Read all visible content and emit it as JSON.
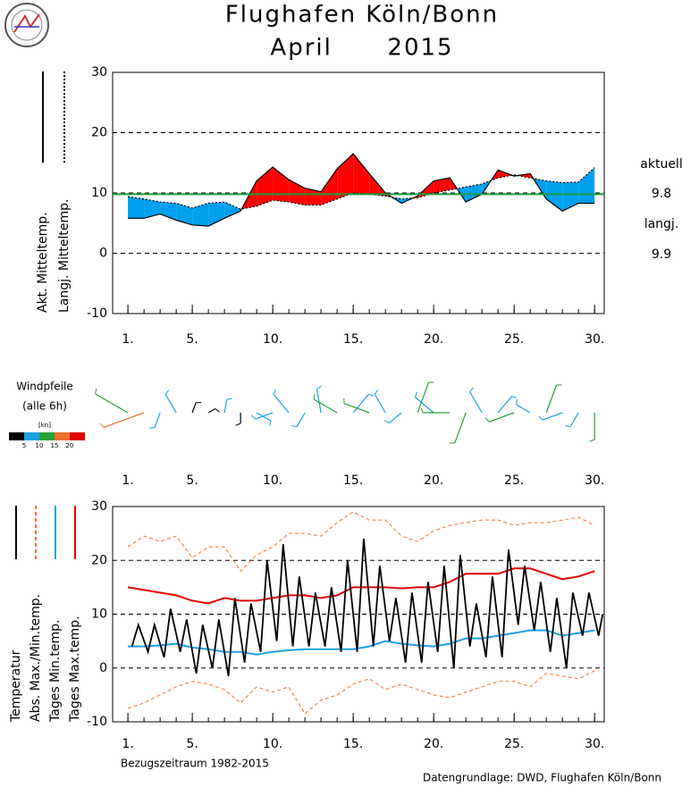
{
  "header": {
    "title": "Flughafen Köln/Bonn",
    "subtitle": "April      2015"
  },
  "footer": {
    "left": "Bezugszeitraum 1982-2015",
    "right": "Datengrundlage: DWD, Flughafen Köln/Bonn"
  },
  "chart_data": [
    {
      "type": "line",
      "x": [
        1,
        2,
        3,
        4,
        5,
        6,
        7,
        8,
        9,
        10,
        11,
        12,
        13,
        14,
        15,
        16,
        17,
        18,
        19,
        20,
        21,
        22,
        23,
        24,
        25,
        26,
        27,
        28,
        29,
        30
      ],
      "series": [
        {
          "name": "Akt. Mitteltemp.",
          "color": "#000000",
          "style": "solid",
          "values": [
            5.8,
            5.8,
            6.5,
            5.5,
            4.7,
            4.5,
            5.8,
            7.0,
            12.0,
            14.3,
            12.2,
            10.8,
            10.2,
            14.0,
            16.5,
            13.2,
            10.0,
            8.3,
            9.5,
            12.0,
            12.5,
            8.5,
            9.8,
            13.8,
            12.8,
            13.2,
            9.0,
            7.0,
            8.3,
            8.3
          ]
        },
        {
          "name": "Langj. Mitteltemp.",
          "color": "#000000",
          "style": "dotted",
          "values": [
            9.4,
            9.0,
            8.5,
            8.3,
            7.5,
            8.3,
            8.5,
            7.3,
            7.8,
            8.8,
            8.5,
            8.0,
            8.0,
            9.0,
            10.0,
            9.8,
            9.5,
            9.0,
            9.2,
            10.0,
            10.5,
            11.0,
            11.5,
            12.5,
            13.0,
            12.5,
            12.0,
            11.7,
            11.8,
            14.2
          ]
        }
      ],
      "fill_above": "#ff0000",
      "fill_below": "#00a0f0",
      "mean": {
        "label": "aktuell",
        "value": 9.8,
        "color": "#1a9e3a"
      },
      "longterm_mean": {
        "label": "langj.",
        "value": 9.9,
        "color": "#e8742a"
      },
      "xlim": [
        0.05,
        30.6
      ],
      "xticks": [
        {
          "value": 1,
          "label": "1."
        },
        {
          "value": 5,
          "label": "5."
        },
        {
          "value": 10,
          "label": "10."
        },
        {
          "value": 15,
          "label": "15."
        },
        {
          "value": 20,
          "label": "20."
        },
        {
          "value": 25,
          "label": "25."
        },
        {
          "value": 30,
          "label": "30."
        }
      ],
      "ylim": [
        -10,
        30
      ],
      "yticks": [
        -10,
        0,
        10,
        20,
        30
      ],
      "grid": true
    },
    {
      "type": "wind",
      "title": "Windpfeile",
      "subtitle": "(alle 6h)",
      "x": [
        1,
        2,
        3,
        4,
        5,
        6,
        7,
        8,
        9,
        10,
        11,
        12,
        13,
        14,
        15,
        16,
        17,
        18,
        19,
        20,
        21,
        22,
        23,
        24,
        25,
        26,
        27,
        28,
        29,
        30
      ],
      "speed": [
        14,
        16,
        6,
        8,
        4,
        3,
        5,
        4,
        6,
        7,
        9,
        6,
        9,
        10,
        9,
        10,
        8,
        6,
        12,
        9,
        10,
        12,
        9,
        8,
        10,
        6,
        11,
        8,
        6,
        10
      ],
      "direction": [
        300,
        250,
        200,
        330,
        20,
        60,
        10,
        180,
        120,
        250,
        320,
        210,
        350,
        300,
        40,
        290,
        330,
        230,
        20,
        310,
        270,
        200,
        330,
        40,
        250,
        300,
        20,
        250,
        210,
        180
      ],
      "scale": {
        "label": "[kn]",
        "bounds": [
          5,
          10,
          15,
          20
        ],
        "colors": [
          "#000000",
          "#1aa0e6",
          "#2a9e3a",
          "#f07030",
          "#e00000"
        ]
      },
      "xlim": [
        0.05,
        30.6
      ],
      "xticks": [
        {
          "value": 1,
          "label": "1."
        },
        {
          "value": 5,
          "label": "5."
        },
        {
          "value": 10,
          "label": "10."
        },
        {
          "value": 15,
          "label": "15."
        },
        {
          "value": 20,
          "label": "20."
        },
        {
          "value": 25,
          "label": "25."
        },
        {
          "value": 30,
          "label": "30."
        }
      ]
    },
    {
      "type": "line",
      "x": [
        1,
        2,
        3,
        4,
        5,
        6,
        7,
        8,
        9,
        10,
        11,
        12,
        13,
        14,
        15,
        16,
        17,
        18,
        19,
        20,
        21,
        22,
        23,
        24,
        25,
        26,
        27,
        28,
        29,
        30
      ],
      "series": [
        {
          "name": "Temperatur",
          "color": "#000000",
          "style": "solid",
          "x": [
            1.25,
            1.65,
            2.25,
            2.65,
            3.25,
            3.65,
            4.25,
            4.65,
            5.25,
            5.65,
            6.25,
            6.65,
            7.25,
            7.65,
            8.25,
            8.65,
            9.25,
            9.65,
            10.25,
            10.65,
            11.25,
            11.65,
            12.25,
            12.65,
            13.25,
            13.65,
            14.25,
            14.65,
            15.25,
            15.65,
            16.25,
            16.65,
            17.25,
            17.65,
            18.25,
            18.65,
            19.25,
            19.65,
            20.25,
            20.65,
            21.25,
            21.65,
            22.25,
            22.65,
            23.25,
            23.65,
            24.25,
            24.65,
            25.25,
            25.65,
            26.25,
            26.65,
            27.25,
            27.65,
            28.25,
            28.65,
            29.25,
            29.65,
            30.25,
            30.5
          ],
          "values": [
            4,
            8,
            3,
            8,
            2,
            11,
            3,
            9,
            -1,
            8,
            0,
            9,
            -1.5,
            13,
            1,
            12,
            3,
            20,
            5,
            23,
            4,
            17,
            4,
            14,
            4,
            15,
            3,
            20,
            3,
            24,
            4,
            19,
            5,
            13,
            1,
            14,
            1,
            16,
            3,
            19,
            0,
            21,
            4,
            12,
            2,
            17,
            2,
            22,
            8,
            19,
            7,
            16,
            3,
            13,
            0,
            14,
            6,
            14,
            6,
            10
          ]
        },
        {
          "name": "Abs. Max./Min.temp.",
          "color": "#f07030",
          "style": "dashed",
          "values": [
            22.5,
            24.5,
            23.5,
            24.5,
            20.5,
            22.5,
            22.5,
            18,
            21,
            22.5,
            25,
            25,
            24.5,
            27,
            29,
            27.5,
            27.5,
            24.5,
            23.5,
            25.5,
            26.5,
            27,
            27.5,
            27.5,
            26.5,
            27,
            27,
            27.5,
            28,
            26.5
          ]
        },
        {
          "name": "Abs. Max./Min.temp.",
          "color": "#f07030",
          "style": "dashed",
          "legend": false,
          "values": [
            -7.5,
            -6.5,
            -5,
            -3.5,
            -2.5,
            -3,
            -4,
            -6.5,
            -3.5,
            -4.5,
            -3.5,
            -8.5,
            -6,
            -5,
            -3,
            -2,
            -4,
            -3,
            -4,
            -5,
            -5.5,
            -4.5,
            -3.5,
            -2.5,
            -2.5,
            -3.5,
            -1,
            -1.5,
            -2,
            -0.5
          ]
        },
        {
          "name": "Tages Min.temp.",
          "color": "#1aa0e6",
          "style": "solid",
          "values": [
            4,
            4,
            4.2,
            4.5,
            3.8,
            3.5,
            3,
            3,
            2.5,
            3,
            3.3,
            3.5,
            3.5,
            3.5,
            3.5,
            4,
            5,
            4.5,
            4.2,
            4,
            4.5,
            5.5,
            5.5,
            6,
            6.5,
            7,
            7,
            6,
            6.5,
            7
          ]
        },
        {
          "name": "Tages Max.temp.",
          "color": "#e00000",
          "style": "solid",
          "values": [
            15,
            14.5,
            14,
            13.5,
            12.5,
            12,
            13,
            12.5,
            12.5,
            13,
            13.5,
            13.5,
            13,
            13.5,
            15,
            15,
            15,
            14.8,
            15,
            15,
            16,
            17.5,
            17.5,
            17.5,
            18.5,
            18.5,
            17.5,
            16.5,
            17,
            18
          ]
        }
      ],
      "xlim": [
        0.05,
        30.6
      ],
      "xticks": [
        {
          "value": 1,
          "label": "1."
        },
        {
          "value": 5,
          "label": "5."
        },
        {
          "value": 10,
          "label": "10."
        },
        {
          "value": 15,
          "label": "15."
        },
        {
          "value": 20,
          "label": "20."
        },
        {
          "value": 25,
          "label": "25."
        },
        {
          "value": 30,
          "label": "30."
        }
      ],
      "ylim": [
        -10,
        30
      ],
      "yticks": [
        -10,
        0,
        10,
        20,
        30
      ],
      "grid": true
    }
  ]
}
